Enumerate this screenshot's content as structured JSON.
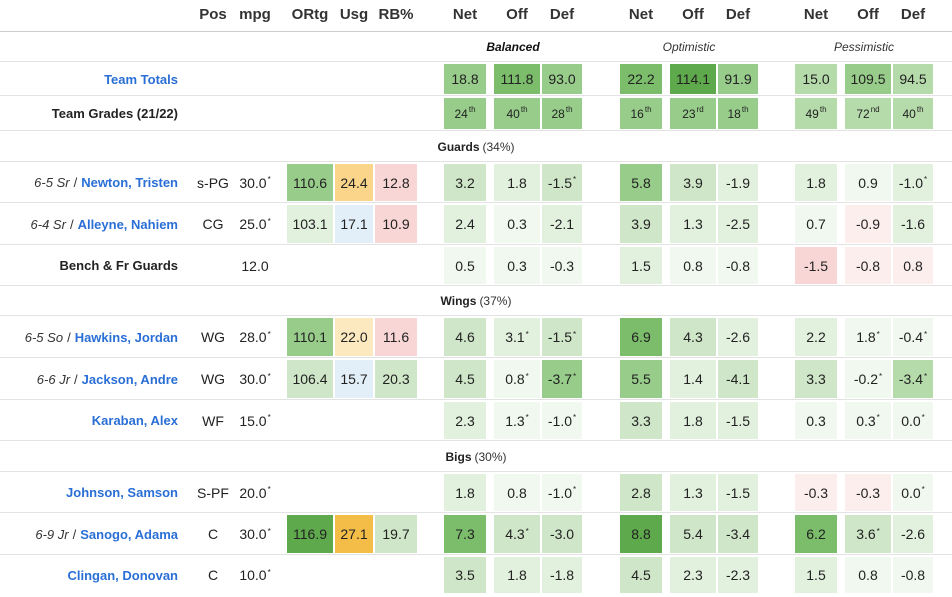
{
  "header": {
    "pos": "Pos",
    "mpg": "mpg",
    "ortg": "ORtg",
    "usg": "Usg",
    "rb": "RB%",
    "net": "Net",
    "off": "Off",
    "def": "Def"
  },
  "scenarios": {
    "balanced": "Balanced",
    "optimistic": "Optimistic",
    "pessimistic": "Pessimistic"
  },
  "team_totals": {
    "label": "Team Totals",
    "balanced": [
      "18.8",
      "111.8",
      "93.0"
    ],
    "optimistic": [
      "22.2",
      "114.1",
      "91.9"
    ],
    "pessimistic": [
      "15.0",
      "109.5",
      "94.5"
    ]
  },
  "team_grades": {
    "label": "Team Grades (21/22)",
    "balanced": [
      [
        "24",
        "th"
      ],
      [
        "40",
        "th"
      ],
      [
        "28",
        "th"
      ]
    ],
    "optimistic": [
      [
        "16",
        "th"
      ],
      [
        "23",
        "rd"
      ],
      [
        "18",
        "th"
      ]
    ],
    "pessimistic": [
      [
        "49",
        "th"
      ],
      [
        "72",
        "nd"
      ],
      [
        "40",
        "th"
      ]
    ]
  },
  "sections": {
    "guards": {
      "label": "Guards",
      "pct": "(34%)"
    },
    "wings": {
      "label": "Wings",
      "pct": "(37%)"
    },
    "bigs": {
      "label": "Bigs",
      "pct": "(30%)"
    }
  },
  "players": [
    {
      "meta": "6-5 Sr",
      "name": "Newton, Tristen",
      "pos": "s-PG",
      "mpg": "30.0*",
      "ortg": "110.6",
      "usg": "24.4",
      "rb": "12.8",
      "bal": [
        "3.2",
        "1.8",
        "-1.5*"
      ],
      "opt": [
        "5.8",
        "3.9",
        "-1.9"
      ],
      "pes": [
        "1.8",
        "0.9",
        "-1.0*"
      ]
    },
    {
      "meta": "6-4 Sr",
      "name": "Alleyne, Nahiem",
      "pos": "CG",
      "mpg": "25.0*",
      "ortg": "103.1",
      "usg": "17.1",
      "rb": "10.9",
      "bal": [
        "2.4",
        "0.3",
        "-2.1"
      ],
      "opt": [
        "3.9",
        "1.3",
        "-2.5"
      ],
      "pes": [
        "0.7",
        "-0.9",
        "-1.6"
      ]
    },
    {
      "meta": "",
      "name": "Bench & Fr Guards",
      "pos": "",
      "mpg": "12.0",
      "ortg": "",
      "usg": "",
      "rb": "",
      "bal": [
        "0.5",
        "0.3",
        "-0.3"
      ],
      "opt": [
        "1.5",
        "0.8",
        "-0.8"
      ],
      "pes": [
        "-1.5",
        "-0.8",
        "0.8"
      ]
    },
    {
      "meta": "6-5 So",
      "name": "Hawkins, Jordan",
      "pos": "WG",
      "mpg": "28.0*",
      "ortg": "110.1",
      "usg": "22.0",
      "rb": "11.6",
      "bal": [
        "4.6",
        "3.1*",
        "-1.5*"
      ],
      "opt": [
        "6.9",
        "4.3",
        "-2.6"
      ],
      "pes": [
        "2.2",
        "1.8*",
        "-0.4*"
      ]
    },
    {
      "meta": "6-6 Jr",
      "name": "Jackson, Andre",
      "pos": "WG",
      "mpg": "30.0*",
      "ortg": "106.4",
      "usg": "15.7",
      "rb": "20.3",
      "bal": [
        "4.5",
        "0.8*",
        "-3.7*"
      ],
      "opt": [
        "5.5",
        "1.4",
        "-4.1"
      ],
      "pes": [
        "3.3",
        "-0.2*",
        "-3.4*"
      ]
    },
    {
      "meta": "",
      "name": "Karaban, Alex",
      "pos": "WF",
      "mpg": "15.0*",
      "ortg": "",
      "usg": "",
      "rb": "",
      "bal": [
        "2.3",
        "1.3*",
        "-1.0*"
      ],
      "opt": [
        "3.3",
        "1.8",
        "-1.5"
      ],
      "pes": [
        "0.3",
        "0.3*",
        "0.0*"
      ]
    },
    {
      "meta": "",
      "name": "Johnson, Samson",
      "pos": "S-PF",
      "mpg": "20.0*",
      "ortg": "",
      "usg": "",
      "rb": "",
      "bal": [
        "1.8",
        "0.8",
        "-1.0*"
      ],
      "opt": [
        "2.8",
        "1.3",
        "-1.5"
      ],
      "pes": [
        "-0.3",
        "-0.3",
        "0.0*"
      ]
    },
    {
      "meta": "6-9 Jr",
      "name": "Sanogo, Adama",
      "pos": "C",
      "mpg": "30.0*",
      "ortg": "116.9",
      "usg": "27.1",
      "rb": "19.7",
      "bal": [
        "7.3",
        "4.3*",
        "-3.0"
      ],
      "opt": [
        "8.8",
        "5.4",
        "-3.4"
      ],
      "pes": [
        "6.2",
        "3.6*",
        "-2.6"
      ]
    },
    {
      "meta": "",
      "name": "Clingan, Donovan",
      "pos": "C",
      "mpg": "10.0*",
      "ortg": "",
      "usg": "",
      "rb": "",
      "bal": [
        "3.5",
        "1.8",
        "-1.8"
      ],
      "opt": [
        "4.5",
        "2.3",
        "-2.3"
      ],
      "pes": [
        "1.5",
        "0.8",
        "-0.8"
      ]
    }
  ],
  "colors": {
    "green_1": "#f1f8ef",
    "green_2": "#e2f1de",
    "green_3": "#cfe7c8",
    "green_4": "#b6dbab",
    "green_5": "#98cc8a",
    "green_6": "#7bbd6a",
    "green_7": "#5ea94b",
    "red_1": "#fdeeee",
    "red_2": "#f9d6d6",
    "orange_1": "#fde9bf",
    "orange_2": "#fbd58a",
    "orange_3": "#f3bd47",
    "blue_1": "#e3eff8",
    "link": "#2a6fd6"
  }
}
